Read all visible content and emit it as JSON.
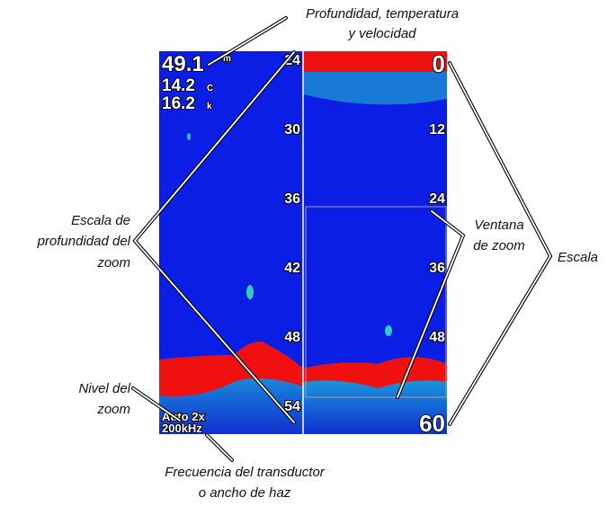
{
  "callouts": {
    "depth_temp_speed": [
      "Profundidad, temperatura",
      "y velocidad"
    ],
    "zoom_depth_scale": [
      "Escala de",
      "profundidad del",
      "zoom"
    ],
    "zoom_window": [
      "Ventana",
      "de zoom"
    ],
    "scale": "Escala",
    "zoom_level": [
      "Nivel del",
      "zoom"
    ],
    "transducer_frequency": [
      "Frecuencia del transductor",
      "o ancho de haz"
    ]
  },
  "display": {
    "depth": "49.1",
    "depth_unit": "m",
    "temperature": "14.2",
    "temperature_unit": "C",
    "speed": "16.2",
    "speed_unit": "k",
    "left_scale": [
      "24",
      "30",
      "36",
      "42",
      "48",
      "54"
    ],
    "right_scale": [
      "0",
      "12",
      "24",
      "36",
      "48",
      "60"
    ],
    "zoom_mode": "Auto 2x",
    "frequency": "200kHz"
  }
}
